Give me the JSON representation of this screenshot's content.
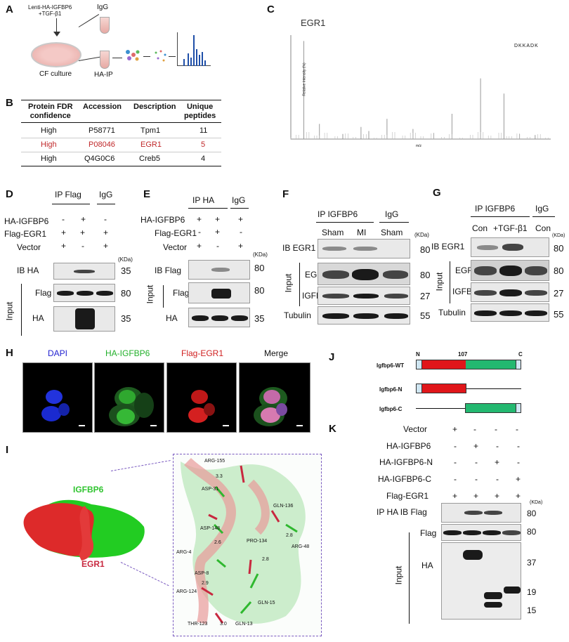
{
  "panel_labels": {
    "A": "A",
    "B": "B",
    "C": "C",
    "D": "D",
    "E": "E",
    "F": "F",
    "G": "G",
    "H": "H",
    "I": "I",
    "J": "J",
    "K": "K"
  },
  "panelA": {
    "top_text": "Lenti-HA-IGFBP6\n+TGF-β1",
    "igg": "IgG",
    "ha_ip": "HA-IP",
    "culture": "CF culture"
  },
  "panelB": {
    "headers": [
      "Protein FDR\nconfidence",
      "Accession",
      "Description",
      "Unique\npeptides"
    ],
    "rows": [
      {
        "conf": "High",
        "acc": "P58771",
        "desc": "Tpm1",
        "pep": "11",
        "highlight": false
      },
      {
        "conf": "High",
        "acc": "P08046",
        "desc": "EGR1",
        "pep": "5",
        "highlight": true
      },
      {
        "conf": "High",
        "acc": "Q4G0C6",
        "desc": "Creb5",
        "pep": "4",
        "highlight": false
      }
    ],
    "highlight_color": "#c0282a"
  },
  "panelC": {
    "title": "EGR1",
    "ylabel": "Relative Intensity (%)",
    "xlabel": "m/z",
    "peptide": "DKKADK",
    "peaks_x": [
      0.05,
      0.11,
      0.2,
      0.27,
      0.3,
      0.37,
      0.47,
      0.55,
      0.62,
      0.73,
      0.82,
      0.88,
      0.94
    ],
    "peaks_y": [
      0.97,
      0.15,
      0.05,
      0.12,
      0.08,
      0.2,
      0.1,
      0.06,
      0.25,
      0.6,
      0.45,
      0.05,
      0.04
    ]
  },
  "panelD": {
    "ip_flag": "IP Flag",
    "igg": "IgG",
    "rows": [
      {
        "label": "HA-IGFBP6",
        "vals": [
          "-",
          "+",
          "-"
        ]
      },
      {
        "label": "Flag-EGR1",
        "vals": [
          "+",
          "+",
          "+"
        ]
      },
      {
        "label": "Vector",
        "vals": [
          "+",
          "-",
          "+"
        ]
      }
    ],
    "kda": "(KDa)",
    "ib": "IB HA",
    "ib_kda": "35",
    "input": "Input",
    "input_rows": [
      {
        "label": "Flag",
        "kda": "80"
      },
      {
        "label": "HA",
        "kda": "35"
      }
    ]
  },
  "panelE": {
    "ip": "IP HA",
    "igg": "IgG",
    "rows": [
      {
        "label": "HA-IGFBP6",
        "vals": [
          "+",
          "+",
          "+"
        ]
      },
      {
        "label": "Flag-EGR1",
        "vals": [
          "-",
          "+",
          "-"
        ]
      },
      {
        "label": "Vector",
        "vals": [
          "+",
          "-",
          "+"
        ]
      }
    ],
    "kda": "(KDa)",
    "ib": "IB Flag",
    "ib_kda": "80",
    "input": "Input",
    "input_rows": [
      {
        "label": "Flag",
        "kda": "80"
      },
      {
        "label": "HA",
        "kda": "35"
      }
    ]
  },
  "panelF": {
    "ip": "IP IGFBP6",
    "igg": "IgG",
    "cols": [
      "Sham",
      "MI",
      "Sham"
    ],
    "kda": "(KDa)",
    "ib": "IB EGR1",
    "ib_kda": "80",
    "input": "Input",
    "input_rows": [
      {
        "label": "EGR1",
        "kda": "80"
      },
      {
        "label": "IGFBP6",
        "kda": "27"
      },
      {
        "label": "Tubulin",
        "kda": "55"
      }
    ]
  },
  "panelG": {
    "ip": "IP IGFBP6",
    "igg": "IgG",
    "cols": [
      "Con",
      "+TGF-β1",
      "Con"
    ],
    "kda": "(KDa)",
    "ib": "IB EGR1",
    "ib_kda": "80",
    "input": "Input",
    "input_rows": [
      {
        "label": "EGR1",
        "kda": "80"
      },
      {
        "label": "IGFBP6",
        "kda": "27"
      },
      {
        "label": "Tubulin",
        "kda": "55"
      }
    ]
  },
  "panelH": {
    "channels": [
      {
        "label": "DAPI",
        "color": "#1f1fd0"
      },
      {
        "label": "HA-IGFBP6",
        "color": "#22b02a"
      },
      {
        "label": "Flag-EGR1",
        "color": "#d02020"
      },
      {
        "label": "Merge",
        "color": "#111111"
      }
    ]
  },
  "panelI": {
    "igfbp6": "IGFBP6",
    "egr1": "EGR1",
    "igfbp6_color": "#2fc42f",
    "egr1_color": "#c8283f",
    "residues": [
      "ARG-155",
      "ASP-31",
      "ASP-148",
      "GLN-136",
      "ARG-4",
      "ARG-48",
      "PRO-134",
      "ASP-8",
      "ARG-124",
      "GLN-15",
      "THR-123",
      "GLN-13"
    ],
    "distances": [
      "3.3",
      "2.6",
      "2.9",
      "2.8",
      "2.8",
      "3.0"
    ]
  },
  "panelJ": {
    "wt": "Igfbp6-WT",
    "n": "Igfbp6-N",
    "c": "Igfbp6-C",
    "N": "N",
    "pos": "107",
    "C": "C"
  },
  "panelK": {
    "rows": [
      {
        "label": "Vector",
        "vals": [
          "+",
          "-",
          "-",
          "-"
        ]
      },
      {
        "label": "HA-IGFBP6",
        "vals": [
          "-",
          "+",
          "-",
          "-"
        ]
      },
      {
        "label": "HA-IGFBP6-N",
        "vals": [
          "-",
          "-",
          "+",
          "-"
        ]
      },
      {
        "label": "HA-IGFBP6-C",
        "vals": [
          "-",
          "-",
          "-",
          "+"
        ]
      },
      {
        "label": "Flag-EGR1",
        "vals": [
          "+",
          "+",
          "+",
          "+"
        ]
      }
    ],
    "kda": "(KDa)",
    "ib": "IP HA IB Flag",
    "ib_kda": "80",
    "input": "Input",
    "flag": "Flag",
    "flag_kda": "80",
    "ha": "HA",
    "ha_kdas": [
      "37",
      "19",
      "15"
    ]
  }
}
